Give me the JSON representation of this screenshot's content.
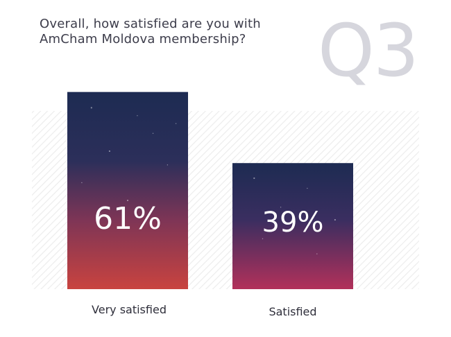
{
  "question": {
    "title": "Overall, how satisfied are you with AmCham Moldova membership?",
    "number": "Q3"
  },
  "colors": {
    "title_text": "#3d3d4b",
    "question_number": "#d6d6dd",
    "bar_top": "#1d2b52",
    "bar_bottom_high": "#c9433f",
    "bar_bottom_low": "#b2305a",
    "bar_label": "#ffffff",
    "category_label": "#2e2e3a",
    "background_hatch": "#ececec"
  },
  "chart_data": {
    "type": "bar",
    "title": "Overall, how satisfied are you with AmCham Moldova membership?",
    "categories": [
      "Very satisfied",
      "Satisfied"
    ],
    "values": [
      61,
      39
    ],
    "data_labels": [
      "61%",
      "39%"
    ],
    "unit": "%",
    "ylim": [
      0,
      65
    ],
    "grid": false,
    "legend": "none"
  }
}
